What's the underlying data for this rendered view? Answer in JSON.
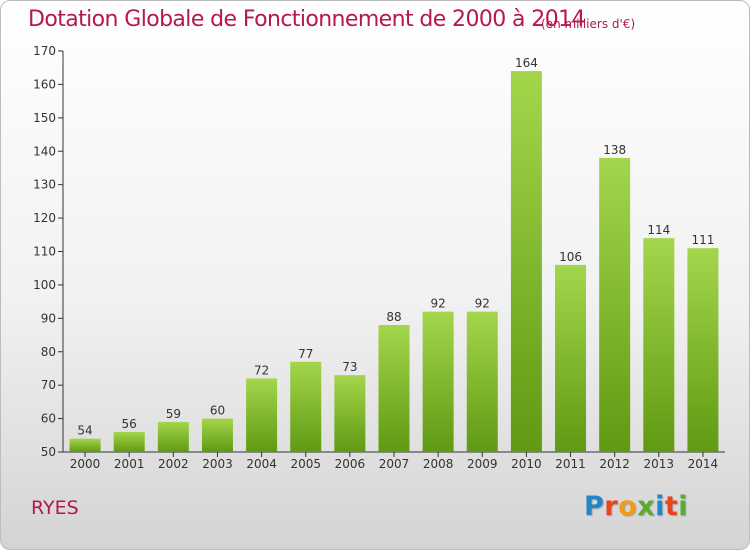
{
  "title": "Dotation Globale de Fonctionnement de 2000 à 2014",
  "unit_note": "(en milliers d'€)",
  "town": "RYES",
  "logo": {
    "letters": [
      "P",
      "r",
      "o",
      "x",
      "i",
      "t",
      "i"
    ],
    "colors": [
      "#1f86c8",
      "#e8451e",
      "#f29a1b",
      "#5aab2e",
      "#1f86c8",
      "#e8451e",
      "#5aab2e"
    ]
  },
  "colors": {
    "bar_light": "#a4d64c",
    "bar_dark": "#5f9a12",
    "title": "#b5174f"
  },
  "chart_data": {
    "type": "bar",
    "categories": [
      "2000",
      "2001",
      "2002",
      "2003",
      "2004",
      "2005",
      "2006",
      "2007",
      "2008",
      "2009",
      "2010",
      "2011",
      "2012",
      "2013",
      "2014"
    ],
    "values": [
      54,
      56,
      59,
      60,
      72,
      77,
      73,
      88,
      92,
      92,
      164,
      106,
      138,
      114,
      111
    ],
    "ylim": [
      50,
      170
    ],
    "yticks": [
      50,
      60,
      70,
      80,
      90,
      100,
      110,
      120,
      130,
      140,
      150,
      160,
      170
    ],
    "grid": false,
    "data_labels": true
  }
}
